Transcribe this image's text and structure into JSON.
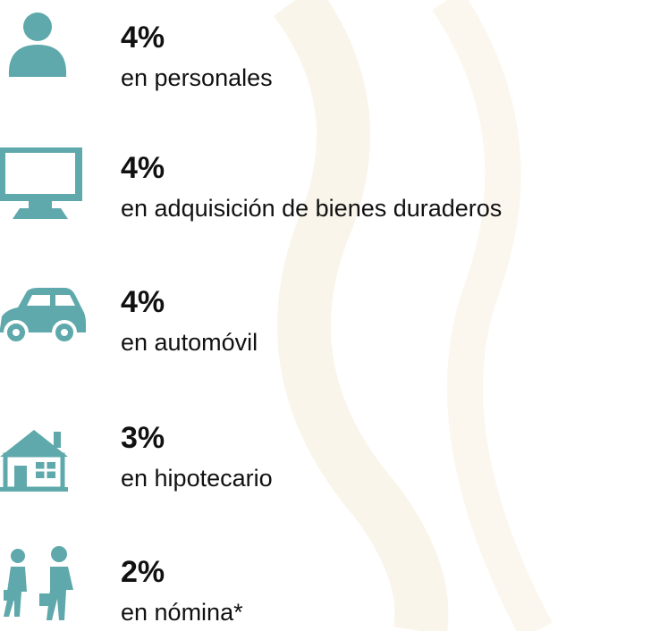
{
  "items": [
    {
      "value": "4%",
      "label": "en personales"
    },
    {
      "value": "4%",
      "label": "en adquisición de bienes duraderos"
    },
    {
      "value": "4%",
      "label": "en automóvil"
    },
    {
      "value": "3%",
      "label": "en hipotecario"
    },
    {
      "value": "2%",
      "label": "en nómina*"
    }
  ]
}
